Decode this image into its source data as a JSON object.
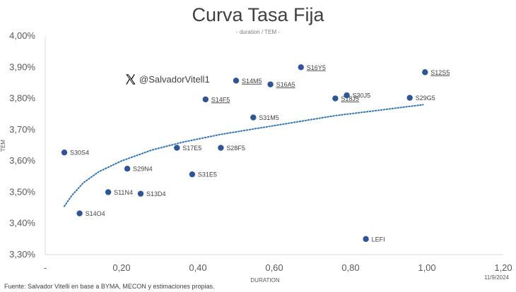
{
  "title": "Curva Tasa Fija",
  "subtitle": "- duration / TEM -",
  "watermark": "@SalvadorVitell1",
  "source": "Fuente: Salvador Vitelli en base a BYMA, MECON y estimaciones propias.",
  "date": "11/9/2024",
  "colors": {
    "point": "#2f5597",
    "trend": "#2e75b6",
    "axis": "#d9d9d9"
  },
  "chart_data": {
    "type": "scatter",
    "title": "Curva Tasa Fija",
    "subtitle": "- duration / TEM -",
    "xlabel": "DURATION",
    "ylabel": "TEM",
    "xlim": [
      0,
      1.2
    ],
    "ylim": [
      3.3,
      4.0
    ],
    "x_ticks": [
      "-",
      "0,20",
      "0,40",
      "0,60",
      "0,80",
      "1,00",
      "1,20"
    ],
    "x_tick_values": [
      0,
      0.2,
      0.4,
      0.6,
      0.8,
      1.0,
      1.2
    ],
    "y_ticks": [
      "3,30%",
      "3,40%",
      "3,50%",
      "3,60%",
      "3,70%",
      "3,80%",
      "3,90%",
      "4,00%"
    ],
    "y_tick_values": [
      3.3,
      3.4,
      3.5,
      3.6,
      3.7,
      3.8,
      3.9,
      4.0
    ],
    "grid": false,
    "trendline": "logarithmic",
    "trend": [
      [
        0.05,
        3.455
      ],
      [
        0.07,
        3.49
      ],
      [
        0.1,
        3.53
      ],
      [
        0.14,
        3.565
      ],
      [
        0.2,
        3.6
      ],
      [
        0.28,
        3.635
      ],
      [
        0.36,
        3.66
      ],
      [
        0.46,
        3.685
      ],
      [
        0.56,
        3.705
      ],
      [
        0.66,
        3.725
      ],
      [
        0.76,
        3.745
      ],
      [
        0.86,
        3.76
      ],
      [
        0.99,
        3.78
      ]
    ],
    "points": [
      {
        "label": "S30S4",
        "x": 0.05,
        "y": 3.627,
        "underline": false
      },
      {
        "label": "S14O4",
        "x": 0.09,
        "y": 3.432,
        "underline": false
      },
      {
        "label": "S11N4",
        "x": 0.165,
        "y": 3.5,
        "underline": false
      },
      {
        "label": "S29N4",
        "x": 0.215,
        "y": 3.575,
        "underline": false
      },
      {
        "label": "S13D4",
        "x": 0.25,
        "y": 3.495,
        "underline": false
      },
      {
        "label": "S17E5",
        "x": 0.345,
        "y": 3.642,
        "underline": false
      },
      {
        "label": "S31E5",
        "x": 0.385,
        "y": 3.557,
        "underline": false
      },
      {
        "label": "S14F5",
        "x": 0.42,
        "y": 3.797,
        "underline": true
      },
      {
        "label": "S28F5",
        "x": 0.46,
        "y": 3.642,
        "underline": false
      },
      {
        "label": "S14M5",
        "x": 0.5,
        "y": 3.857,
        "underline": true
      },
      {
        "label": "S31M5",
        "x": 0.545,
        "y": 3.739,
        "underline": false
      },
      {
        "label": "S16A5",
        "x": 0.59,
        "y": 3.845,
        "underline": true
      },
      {
        "label": "S16Y5",
        "x": 0.67,
        "y": 3.9,
        "underline": true
      },
      {
        "label": "S18J5",
        "x": 0.76,
        "y": 3.8,
        "underline": true
      },
      {
        "label": "S30J5",
        "x": 0.79,
        "y": 3.81,
        "underline": false
      },
      {
        "label": "LEFI",
        "x": 0.84,
        "y": 3.35,
        "underline": false
      },
      {
        "label": "S29G5",
        "x": 0.955,
        "y": 3.802,
        "underline": false
      },
      {
        "label": "S12S5",
        "x": 0.995,
        "y": 3.884,
        "underline": true
      }
    ]
  }
}
